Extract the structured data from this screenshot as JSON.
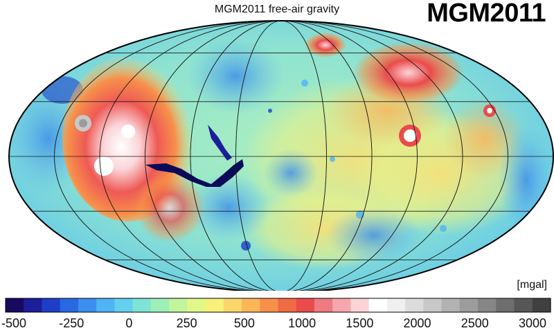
{
  "map": {
    "title": "MGM2011 free-air gravity",
    "brand": "MGM2011",
    "unit": "[mgal]",
    "projection": "mollweide",
    "graticule": {
      "longitude_step_deg": 30,
      "latitude_step_deg": 30
    }
  },
  "colorbar": {
    "ticks": [
      {
        "label": "-500",
        "value": -500
      },
      {
        "label": "-250",
        "value": -250
      },
      {
        "label": "0",
        "value": 0
      },
      {
        "label": "250",
        "value": 250
      },
      {
        "label": "500",
        "value": 500
      },
      {
        "label": "1000",
        "value": 1000
      },
      {
        "label": "1500",
        "value": 1500
      },
      {
        "label": "2000",
        "value": 2000
      },
      {
        "label": "2500",
        "value": 2500
      },
      {
        "label": "3000",
        "value": 3000
      }
    ],
    "colors": [
      "#170a5e",
      "#1c1e9a",
      "#1d3fc8",
      "#2868e2",
      "#3b8ff0",
      "#4fb3f4",
      "#64d0ee",
      "#7fe3d6",
      "#9ef0b8",
      "#c2f59c",
      "#e2f78a",
      "#f7f07a",
      "#fbd66a",
      "#fbb658",
      "#f7904a",
      "#f06a44",
      "#ea4b4b",
      "#f07a82",
      "#f6a7ad",
      "#fbd4d8",
      "#ffffff",
      "#f0f0f0",
      "#dcdcdc",
      "#c8c8c8",
      "#b2b2b2",
      "#9c9c9c",
      "#868686",
      "#6e6e6e",
      "#575757",
      "#404040"
    ]
  }
}
